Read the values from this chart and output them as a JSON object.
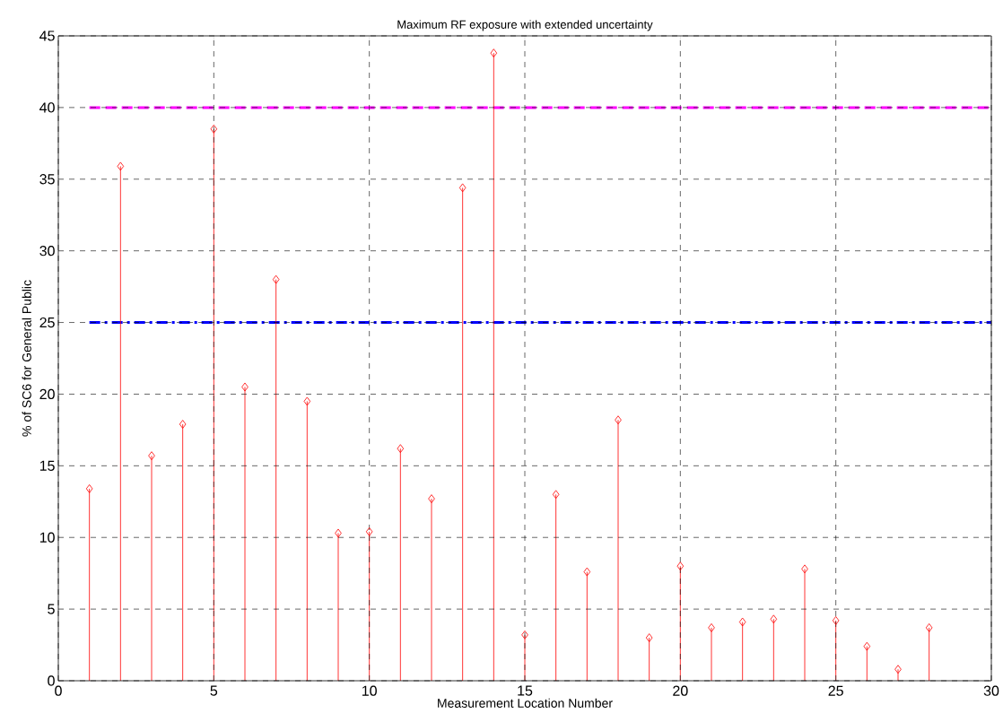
{
  "chart_data": {
    "type": "lollipop",
    "title": "Maximum RF exposure with extended uncertainty",
    "xlabel": "Measurement Location Number",
    "ylabel": "% of SC6 for General Public",
    "x": [
      1,
      2,
      3,
      4,
      5,
      6,
      7,
      8,
      9,
      10,
      11,
      12,
      13,
      14,
      15,
      16,
      17,
      18,
      19,
      20,
      21,
      22,
      23,
      24,
      25,
      26,
      27,
      28
    ],
    "values": [
      13.4,
      35.9,
      15.7,
      17.9,
      38.5,
      20.5,
      28.0,
      19.5,
      10.3,
      10.4,
      16.2,
      12.7,
      34.4,
      43.8,
      3.2,
      13.0,
      7.6,
      18.2,
      3.0,
      8.0,
      3.7,
      4.1,
      4.3,
      7.8,
      4.2,
      2.4,
      0.8,
      3.7
    ],
    "color": "#ff0000",
    "marker": "diamond",
    "xlim": [
      0,
      30
    ],
    "xticks": [
      0,
      5,
      10,
      15,
      20,
      25,
      30
    ],
    "ylim": [
      0,
      45
    ],
    "yticks": [
      0,
      5,
      10,
      15,
      20,
      25,
      30,
      35,
      40,
      45
    ],
    "grid": true,
    "ref_lines": [
      {
        "axis": "y",
        "value": 40,
        "color": "#ff00ff",
        "line_style": "dashed"
      },
      {
        "axis": "y",
        "value": 25,
        "color": "#0000ff",
        "line_style": "dashdot"
      }
    ]
  }
}
